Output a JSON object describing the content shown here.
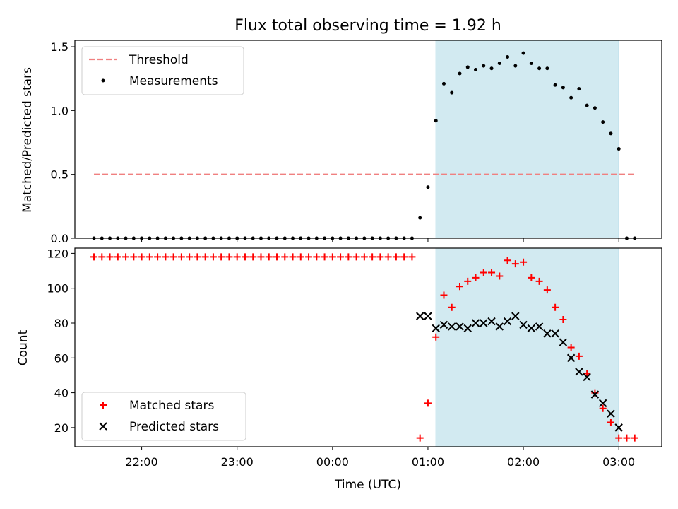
{
  "figure": {
    "title": "Flux total observing time = 1.92 h",
    "xlabel": "Time (UTC)"
  },
  "colors": {
    "threshold": "#f08080",
    "measurements": "#000000",
    "matched": "#ff0000",
    "predicted": "#000000",
    "shade": "#add8e6"
  },
  "chart_data": [
    {
      "type": "scatter",
      "ylabel": "Matched/Predicted stars",
      "ylim": [
        0,
        1.55
      ],
      "yticks": [
        0.0,
        0.5,
        1.0,
        1.5
      ],
      "ytick_labels": [
        "0.0",
        "0.5",
        "1.0",
        "1.5"
      ],
      "xlim": [
        "21:18",
        "03:27"
      ],
      "xticks": [
        "22:00",
        "23:00",
        "00:00",
        "01:00",
        "02:00",
        "03:00"
      ],
      "shaded_interval": [
        "01:05",
        "03:00"
      ],
      "legend": {
        "position": "top-left",
        "entries": [
          "Threshold",
          "Measurements"
        ]
      },
      "threshold": {
        "name": "Threshold",
        "y": 0.5,
        "x_range": [
          "21:30",
          "03:10"
        ]
      },
      "series": [
        {
          "name": "Measurements",
          "points": [
            [
              "21:30",
              0
            ],
            [
              "21:35",
              0
            ],
            [
              "21:40",
              0
            ],
            [
              "21:45",
              0
            ],
            [
              "21:50",
              0
            ],
            [
              "21:55",
              0
            ],
            [
              "22:00",
              0
            ],
            [
              "22:05",
              0
            ],
            [
              "22:10",
              0
            ],
            [
              "22:15",
              0
            ],
            [
              "22:20",
              0
            ],
            [
              "22:25",
              0
            ],
            [
              "22:30",
              0
            ],
            [
              "22:35",
              0
            ],
            [
              "22:40",
              0
            ],
            [
              "22:45",
              0
            ],
            [
              "22:50",
              0
            ],
            [
              "22:55",
              0
            ],
            [
              "23:00",
              0
            ],
            [
              "23:05",
              0
            ],
            [
              "23:10",
              0
            ],
            [
              "23:15",
              0
            ],
            [
              "23:20",
              0
            ],
            [
              "23:25",
              0
            ],
            [
              "23:30",
              0
            ],
            [
              "23:35",
              0
            ],
            [
              "23:40",
              0
            ],
            [
              "23:45",
              0
            ],
            [
              "23:50",
              0
            ],
            [
              "23:55",
              0
            ],
            [
              "00:00",
              0
            ],
            [
              "00:05",
              0
            ],
            [
              "00:10",
              0
            ],
            [
              "00:15",
              0
            ],
            [
              "00:20",
              0
            ],
            [
              "00:25",
              0
            ],
            [
              "00:30",
              0
            ],
            [
              "00:35",
              0
            ],
            [
              "00:40",
              0
            ],
            [
              "00:45",
              0
            ],
            [
              "00:50",
              0
            ],
            [
              "00:55",
              0.16
            ],
            [
              "01:00",
              0.4
            ],
            [
              "01:05",
              0.92
            ],
            [
              "01:10",
              1.21
            ],
            [
              "01:15",
              1.14
            ],
            [
              "01:20",
              1.29
            ],
            [
              "01:25",
              1.34
            ],
            [
              "01:30",
              1.32
            ],
            [
              "01:35",
              1.35
            ],
            [
              "01:40",
              1.33
            ],
            [
              "01:45",
              1.37
            ],
            [
              "01:50",
              1.42
            ],
            [
              "01:55",
              1.35
            ],
            [
              "02:00",
              1.45
            ],
            [
              "02:05",
              1.37
            ],
            [
              "02:10",
              1.33
            ],
            [
              "02:15",
              1.33
            ],
            [
              "02:20",
              1.2
            ],
            [
              "02:25",
              1.18
            ],
            [
              "02:30",
              1.1
            ],
            [
              "02:35",
              1.17
            ],
            [
              "02:40",
              1.04
            ],
            [
              "02:45",
              1.02
            ],
            [
              "02:50",
              0.91
            ],
            [
              "02:55",
              0.82
            ],
            [
              "03:00",
              0.7
            ],
            [
              "03:05",
              0
            ],
            [
              "03:10",
              0
            ]
          ]
        }
      ]
    },
    {
      "type": "scatter",
      "ylabel": "Count",
      "ylim": [
        9,
        123
      ],
      "yticks": [
        20,
        40,
        60,
        80,
        100,
        120
      ],
      "ytick_labels": [
        "20",
        "40",
        "60",
        "80",
        "100",
        "120"
      ],
      "xlim": [
        "21:18",
        "03:27"
      ],
      "xticks": [
        "22:00",
        "23:00",
        "00:00",
        "01:00",
        "02:00",
        "03:00"
      ],
      "xtick_labels": [
        "22:00",
        "23:00",
        "00:00",
        "01:00",
        "02:00",
        "03:00"
      ],
      "shaded_interval": [
        "01:05",
        "03:00"
      ],
      "legend": {
        "position": "bottom-left",
        "entries": [
          "Matched stars",
          "Predicted stars"
        ]
      },
      "series": [
        {
          "name": "Matched stars",
          "marker": "+",
          "points": [
            [
              "21:30",
              118
            ],
            [
              "21:35",
              118
            ],
            [
              "21:40",
              118
            ],
            [
              "21:45",
              118
            ],
            [
              "21:50",
              118
            ],
            [
              "21:55",
              118
            ],
            [
              "22:00",
              118
            ],
            [
              "22:05",
              118
            ],
            [
              "22:10",
              118
            ],
            [
              "22:15",
              118
            ],
            [
              "22:20",
              118
            ],
            [
              "22:25",
              118
            ],
            [
              "22:30",
              118
            ],
            [
              "22:35",
              118
            ],
            [
              "22:40",
              118
            ],
            [
              "22:45",
              118
            ],
            [
              "22:50",
              118
            ],
            [
              "22:55",
              118
            ],
            [
              "23:00",
              118
            ],
            [
              "23:05",
              118
            ],
            [
              "23:10",
              118
            ],
            [
              "23:15",
              118
            ],
            [
              "23:20",
              118
            ],
            [
              "23:25",
              118
            ],
            [
              "23:30",
              118
            ],
            [
              "23:35",
              118
            ],
            [
              "23:40",
              118
            ],
            [
              "23:45",
              118
            ],
            [
              "23:50",
              118
            ],
            [
              "23:55",
              118
            ],
            [
              "00:00",
              118
            ],
            [
              "00:05",
              118
            ],
            [
              "00:10",
              118
            ],
            [
              "00:15",
              118
            ],
            [
              "00:20",
              118
            ],
            [
              "00:25",
              118
            ],
            [
              "00:30",
              118
            ],
            [
              "00:35",
              118
            ],
            [
              "00:40",
              118
            ],
            [
              "00:45",
              118
            ],
            [
              "00:50",
              118
            ],
            [
              "00:55",
              14
            ],
            [
              "01:00",
              34
            ],
            [
              "01:05",
              72
            ],
            [
              "01:10",
              96
            ],
            [
              "01:15",
              89
            ],
            [
              "01:20",
              101
            ],
            [
              "01:25",
              104
            ],
            [
              "01:30",
              106
            ],
            [
              "01:35",
              109
            ],
            [
              "01:40",
              109
            ],
            [
              "01:45",
              107
            ],
            [
              "01:50",
              116
            ],
            [
              "01:55",
              114
            ],
            [
              "02:00",
              115
            ],
            [
              "02:05",
              106
            ],
            [
              "02:10",
              104
            ],
            [
              "02:15",
              99
            ],
            [
              "02:20",
              89
            ],
            [
              "02:25",
              82
            ],
            [
              "02:30",
              66
            ],
            [
              "02:35",
              61
            ],
            [
              "02:40",
              51
            ],
            [
              "02:45",
              40
            ],
            [
              "02:50",
              31
            ],
            [
              "02:55",
              23
            ],
            [
              "03:00",
              14
            ],
            [
              "03:05",
              14
            ],
            [
              "03:10",
              14
            ]
          ]
        },
        {
          "name": "Predicted stars",
          "marker": "x",
          "points": [
            [
              "00:55",
              84
            ],
            [
              "01:00",
              84
            ],
            [
              "01:05",
              77
            ],
            [
              "01:10",
              79
            ],
            [
              "01:15",
              78
            ],
            [
              "01:20",
              78
            ],
            [
              "01:25",
              77
            ],
            [
              "01:30",
              80
            ],
            [
              "01:35",
              80
            ],
            [
              "01:40",
              81
            ],
            [
              "01:45",
              78
            ],
            [
              "01:50",
              81
            ],
            [
              "01:55",
              84
            ],
            [
              "02:00",
              79
            ],
            [
              "02:05",
              77
            ],
            [
              "02:10",
              78
            ],
            [
              "02:15",
              74
            ],
            [
              "02:20",
              74
            ],
            [
              "02:25",
              69
            ],
            [
              "02:30",
              60
            ],
            [
              "02:35",
              52
            ],
            [
              "02:40",
              49
            ],
            [
              "02:45",
              39
            ],
            [
              "02:50",
              34
            ],
            [
              "02:55",
              28
            ],
            [
              "03:00",
              20
            ]
          ]
        }
      ]
    }
  ]
}
